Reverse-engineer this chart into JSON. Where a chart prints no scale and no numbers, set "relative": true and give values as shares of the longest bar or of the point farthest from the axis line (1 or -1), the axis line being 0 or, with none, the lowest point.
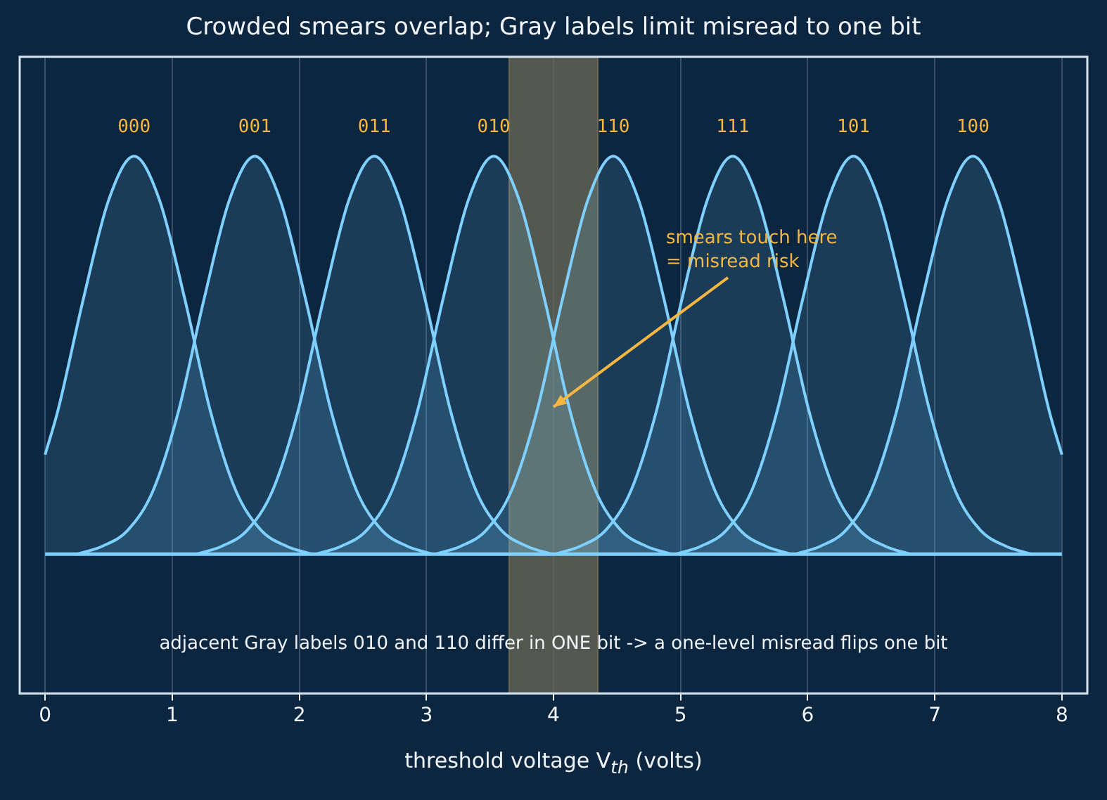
{
  "chart_data": {
    "type": "area",
    "title": "Crowded smears overlap; Gray labels limit misread to one bit",
    "xlabel": "threshold voltage V$_{th}$  (volts)",
    "relative": true,
    "xlim": [
      -0.2,
      8.2
    ],
    "xticks": [
      0,
      1,
      2,
      3,
      4,
      5,
      6,
      7,
      8
    ],
    "grid": "x",
    "legend": false,
    "line_style": "solid",
    "marker": "none",
    "series": [
      {
        "name": "000",
        "color": "#7fd0ff",
        "x": [
          0,
          0.1,
          0.3,
          0.5,
          0.7,
          0.9,
          1.1,
          1.3,
          1.5,
          1.7,
          1.9,
          2.1
        ],
        "values": [
          0.25,
          0.36,
          0.64,
          0.89,
          1,
          0.89,
          0.64,
          0.36,
          0.16,
          0.06,
          0.02,
          0
        ]
      },
      {
        "name": "001",
        "color": "#7fd0ff",
        "x": [
          0.25,
          0.45,
          0.65,
          0.85,
          1.05,
          1.25,
          1.45,
          1.65,
          1.85,
          2.05,
          2.25,
          2.45,
          2.65,
          2.85,
          3.05
        ],
        "values": [
          0,
          0.02,
          0.06,
          0.16,
          0.36,
          0.64,
          0.89,
          1,
          0.89,
          0.64,
          0.36,
          0.16,
          0.06,
          0.02,
          0
        ]
      },
      {
        "name": "011",
        "color": "#7fd0ff",
        "x": [
          1.19,
          1.39,
          1.59,
          1.79,
          1.99,
          2.19,
          2.39,
          2.59,
          2.79,
          2.99,
          3.19,
          3.39,
          3.59,
          3.79,
          3.99
        ],
        "values": [
          0,
          0.02,
          0.06,
          0.16,
          0.36,
          0.64,
          0.89,
          1,
          0.89,
          0.64,
          0.36,
          0.16,
          0.06,
          0.02,
          0
        ]
      },
      {
        "name": "010",
        "color": "#7fd0ff",
        "x": [
          2.13,
          2.33,
          2.53,
          2.73,
          2.93,
          3.13,
          3.33,
          3.53,
          3.73,
          3.93,
          4.13,
          4.33,
          4.53,
          4.73,
          4.93
        ],
        "values": [
          0,
          0.02,
          0.06,
          0.16,
          0.36,
          0.64,
          0.89,
          1,
          0.89,
          0.64,
          0.36,
          0.16,
          0.06,
          0.02,
          0
        ]
      },
      {
        "name": "110",
        "color": "#7fd0ff",
        "x": [
          3.07,
          3.27,
          3.47,
          3.67,
          3.87,
          4.07,
          4.27,
          4.47,
          4.67,
          4.87,
          5.07,
          5.27,
          5.47,
          5.67,
          5.87
        ],
        "values": [
          0,
          0.02,
          0.06,
          0.16,
          0.36,
          0.64,
          0.89,
          1,
          0.89,
          0.64,
          0.36,
          0.16,
          0.06,
          0.02,
          0
        ]
      },
      {
        "name": "111",
        "color": "#7fd0ff",
        "x": [
          4.01,
          4.21,
          4.41,
          4.61,
          4.81,
          5.01,
          5.21,
          5.41,
          5.61,
          5.81,
          6.01,
          6.21,
          6.41,
          6.61,
          6.81
        ],
        "values": [
          0,
          0.02,
          0.06,
          0.16,
          0.36,
          0.64,
          0.89,
          1,
          0.89,
          0.64,
          0.36,
          0.16,
          0.06,
          0.02,
          0
        ]
      },
      {
        "name": "101",
        "color": "#7fd0ff",
        "x": [
          4.96,
          5.16,
          5.36,
          5.56,
          5.76,
          5.96,
          6.16,
          6.36,
          6.56,
          6.76,
          6.96,
          7.16,
          7.36,
          7.56,
          7.76
        ],
        "values": [
          0,
          0.02,
          0.06,
          0.16,
          0.36,
          0.64,
          0.89,
          1,
          0.89,
          0.64,
          0.36,
          0.16,
          0.06,
          0.02,
          0
        ]
      },
      {
        "name": "100",
        "color": "#7fd0ff",
        "x": [
          5.9,
          6.1,
          6.3,
          6.5,
          6.7,
          6.9,
          7.1,
          7.3,
          7.5,
          7.7,
          7.9,
          8
        ],
        "values": [
          0,
          0.02,
          0.06,
          0.16,
          0.36,
          0.64,
          0.89,
          1,
          0.89,
          0.64,
          0.36,
          0.25
        ]
      }
    ],
    "bands": [
      {
        "axis": "x",
        "from": 3.65,
        "to": 4.35,
        "color": "#6b6b55"
      }
    ],
    "ref_lines": [
      {
        "axis": "y",
        "value": 0,
        "color": "#7fd0ff"
      }
    ],
    "annotations": [
      "smears touch here\n= misread risk",
      "adjacent Gray labels 010 and 110 differ in ONE bit -> a one-level misread flips one bit"
    ]
  }
}
